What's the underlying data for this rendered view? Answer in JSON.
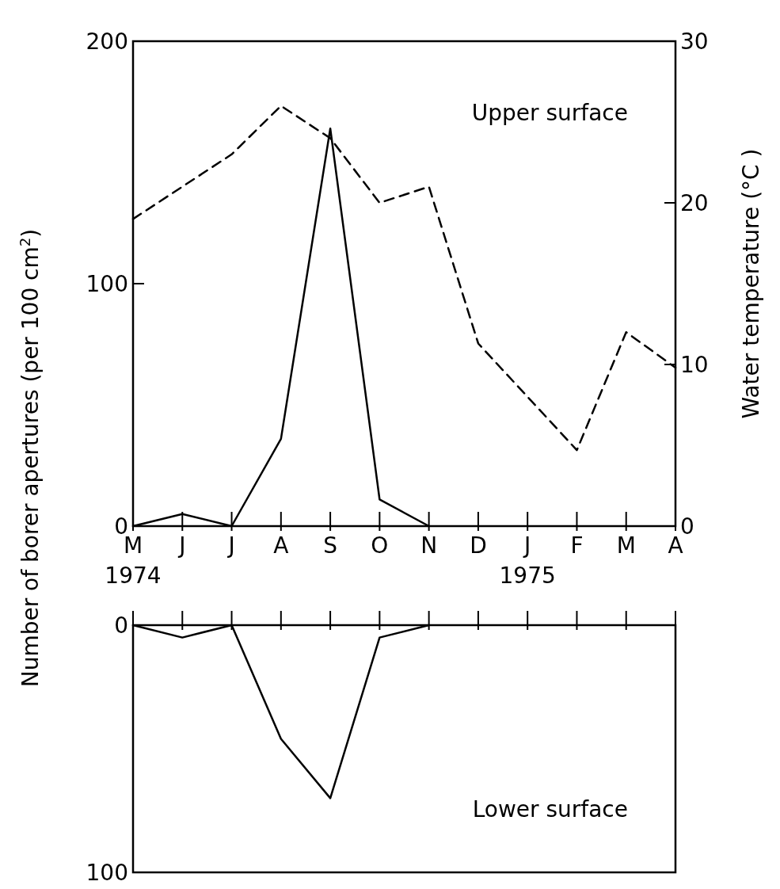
{
  "chart_data": [
    {
      "type": "line",
      "title": "Upper surface",
      "ylabel": "Number of borer apertures (per 100 cm$^{2}$)",
      "y2label": "Water temperature (°C )",
      "categories": [
        "M",
        "J",
        "J",
        "A",
        "S",
        "O",
        "N",
        "D",
        "J",
        "F",
        "M",
        "A"
      ],
      "series": [
        {
          "color": "#000000",
          "line_style": "solid",
          "values": [
            0,
            5,
            0,
            36,
            164,
            11,
            0,
            null,
            null,
            null,
            null,
            null
          ]
        },
        {
          "color": "#000000",
          "line_style": "dashed",
          "axis": "y2",
          "values": [
            19,
            21,
            23,
            26,
            24,
            20,
            21,
            11.3,
            8,
            4.7,
            12,
            9.8
          ]
        }
      ],
      "ylim": [
        0,
        200
      ],
      "yticks": [
        0,
        100,
        200
      ],
      "y2lim": [
        0,
        30
      ],
      "y2ticks": [
        0,
        10,
        20,
        30
      ],
      "annotations": [
        "1974",
        "1975"
      ],
      "marker": "none"
    },
    {
      "type": "line",
      "title": "Lower surface",
      "categories": [
        null,
        null,
        null,
        null,
        null,
        null,
        null,
        null,
        null,
        null,
        null,
        null
      ],
      "series": [
        {
          "color": "#000000",
          "line_style": "solid",
          "values": [
            0,
            5,
            0,
            46,
            70,
            5,
            0,
            null,
            null,
            null,
            null,
            null
          ]
        }
      ],
      "ylim": [
        100,
        0
      ],
      "yticks": [
        0,
        100
      ],
      "tick_labels": "y",
      "marker": "none"
    }
  ]
}
